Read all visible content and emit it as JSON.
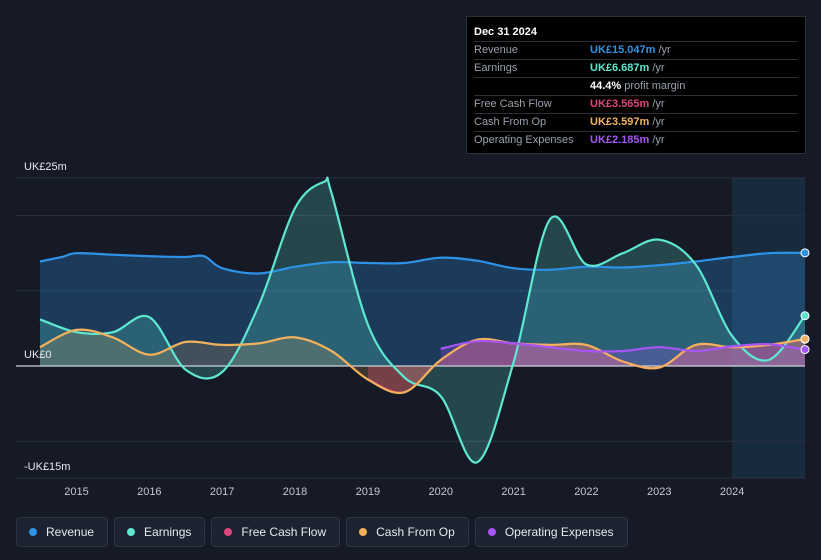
{
  "tooltip": {
    "date": "Dec 31 2024",
    "rows": [
      {
        "label": "Revenue",
        "value": "UK£15.047m",
        "unit": "/yr",
        "color": "#2e93e6"
      },
      {
        "label": "Earnings",
        "value": "UK£6.687m",
        "unit": "/yr",
        "color": "#5ee8d2"
      },
      {
        "label": "",
        "value": "44.4%",
        "unit": "profit margin",
        "color": "#ffffff"
      },
      {
        "label": "Free Cash Flow",
        "value": "UK£3.565m",
        "unit": "/yr",
        "color": "#e0457b"
      },
      {
        "label": "Cash From Op",
        "value": "UK£3.597m",
        "unit": "/yr",
        "color": "#f2b15c"
      },
      {
        "label": "Operating Expenses",
        "value": "UK£2.185m",
        "unit": "/yr",
        "color": "#a855f7"
      }
    ]
  },
  "legend": [
    {
      "label": "Revenue",
      "color": "#2e93e6"
    },
    {
      "label": "Earnings",
      "color": "#5ee8d2"
    },
    {
      "label": "Free Cash Flow",
      "color": "#e0457b"
    },
    {
      "label": "Cash From Op",
      "color": "#f2b15c"
    },
    {
      "label": "Operating Expenses",
      "color": "#a855f7"
    }
  ],
  "chart_data": {
    "type": "line",
    "title": "",
    "xlabel": "",
    "ylabel": "",
    "y_axis_labels": {
      "top": "UK£25m",
      "zero": "UK£0",
      "bottom": "-UK£15m"
    },
    "ylim": [
      -15,
      25
    ],
    "xlim": [
      2014.5,
      2025.0
    ],
    "x_ticks": [
      "2015",
      "2016",
      "2017",
      "2018",
      "2019",
      "2020",
      "2021",
      "2022",
      "2023",
      "2024"
    ],
    "forecast_start": 2024.0,
    "series": [
      {
        "name": "Revenue",
        "color": "#2e93e6",
        "x": [
          2014.5,
          2014.8,
          2015.0,
          2015.5,
          2016.0,
          2016.5,
          2016.75,
          2017.0,
          2017.5,
          2018.0,
          2018.5,
          2019.0,
          2019.5,
          2020.0,
          2020.5,
          2021.0,
          2021.5,
          2022.0,
          2022.5,
          2023.0,
          2023.5,
          2024.0,
          2024.5,
          2025.0
        ],
        "y": [
          13.9,
          14.5,
          15.0,
          14.8,
          14.6,
          14.5,
          14.6,
          13.0,
          12.3,
          13.2,
          13.8,
          13.7,
          13.7,
          14.4,
          14.0,
          13.0,
          12.8,
          13.2,
          13.1,
          13.4,
          13.9,
          14.5,
          15.0,
          15.047
        ]
      },
      {
        "name": "Earnings",
        "color": "#5ee8d2",
        "x": [
          2014.5,
          2015.0,
          2015.5,
          2016.0,
          2016.5,
          2017.0,
          2017.5,
          2018.0,
          2018.4,
          2018.5,
          2019.0,
          2019.5,
          2020.0,
          2020.5,
          2021.0,
          2021.5,
          2022.0,
          2022.5,
          2023.0,
          2023.5,
          2024.0,
          2024.5,
          2025.0
        ],
        "y": [
          6.2,
          4.5,
          4.5,
          6.5,
          -0.5,
          -0.8,
          8.0,
          21.0,
          24.5,
          23.0,
          5.5,
          -1.5,
          -4.0,
          -12.8,
          0.5,
          19.5,
          13.5,
          15.0,
          16.8,
          13.5,
          4.0,
          0.8,
          6.687
        ]
      },
      {
        "name": "Free Cash Flow",
        "color": "#e0457b",
        "x": [
          2019.0,
          2019.5,
          2020.0,
          2020.5,
          2021.0,
          2021.5,
          2022.0,
          2022.5,
          2023.0,
          2023.5,
          2024.0,
          2024.5,
          2025.0
        ],
        "y": [
          -1.8,
          -3.5,
          0.8,
          3.5,
          3.0,
          2.8,
          2.8,
          0.6,
          -0.2,
          2.8,
          2.5,
          2.8,
          3.565
        ]
      },
      {
        "name": "Cash From Op",
        "color": "#f2b15c",
        "x": [
          2014.5,
          2015.0,
          2015.5,
          2016.0,
          2016.5,
          2017.0,
          2017.5,
          2018.0,
          2018.5,
          2019.0,
          2019.5,
          2020.0,
          2020.5,
          2021.0,
          2021.5,
          2022.0,
          2022.5,
          2023.0,
          2023.5,
          2024.0,
          2024.5,
          2025.0
        ],
        "y": [
          2.5,
          4.8,
          3.8,
          1.5,
          3.2,
          2.8,
          3.0,
          3.8,
          2.0,
          -1.8,
          -3.5,
          0.8,
          3.5,
          3.0,
          2.8,
          2.8,
          0.6,
          -0.2,
          2.8,
          2.5,
          2.8,
          3.597
        ]
      },
      {
        "name": "Operating Expenses",
        "color": "#a855f7",
        "x": [
          2020.0,
          2020.5,
          2021.0,
          2021.5,
          2022.0,
          2022.5,
          2023.0,
          2023.5,
          2024.0,
          2024.5,
          2025.0
        ],
        "y": [
          2.3,
          3.3,
          3.0,
          2.5,
          2.0,
          2.0,
          2.5,
          2.0,
          2.6,
          2.9,
          2.185
        ]
      }
    ]
  }
}
